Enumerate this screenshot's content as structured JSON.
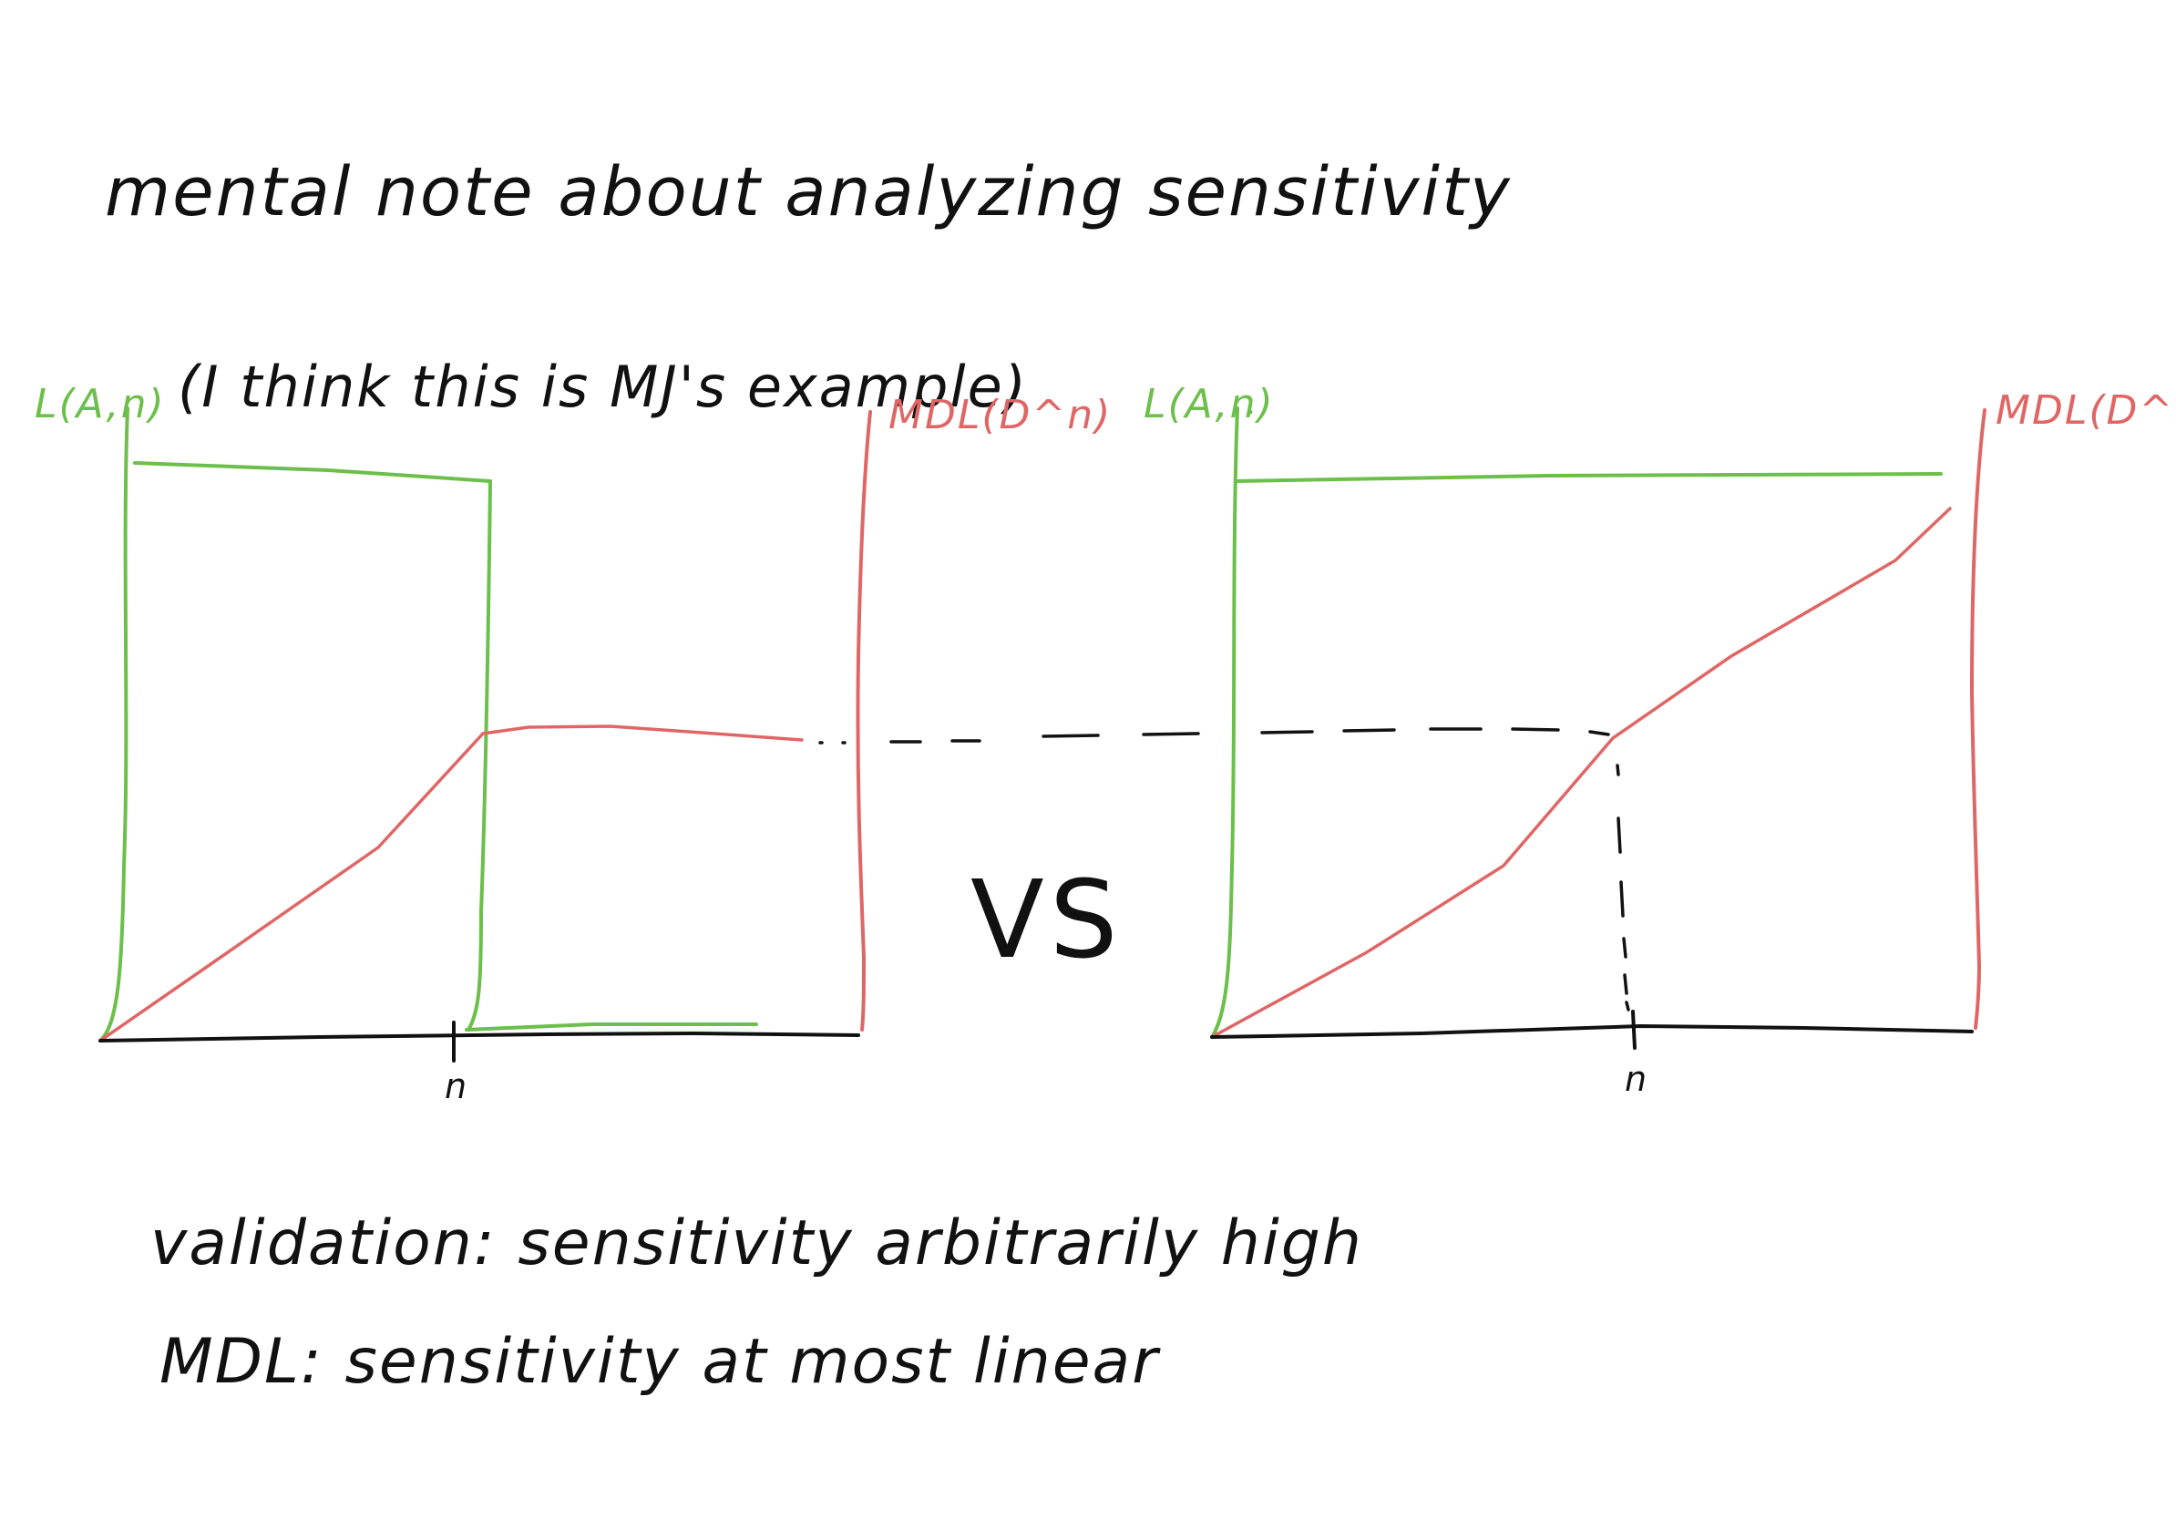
{
  "texts": {
    "title": "mental note about analyzing sensitivity",
    "aside": "(I think this is MJ's example)",
    "vs": "VS",
    "note_validation": "validation: sensitivity arbitrarily high",
    "note_mdl": "MDL: sensitivity at most linear"
  },
  "colors": {
    "ink": "#111111",
    "validation_curve": "#6cbf4a",
    "mdl_curve": "#e06666"
  },
  "left_plot": {
    "y_label_left": "L(A,n)",
    "y_label_right": "MDL(D^n)",
    "x_tick": "n"
  },
  "right_plot": {
    "y_label_left": "L(A,n)",
    "y_label_right": "MDL(D^n)",
    "x_tick": "n"
  }
}
